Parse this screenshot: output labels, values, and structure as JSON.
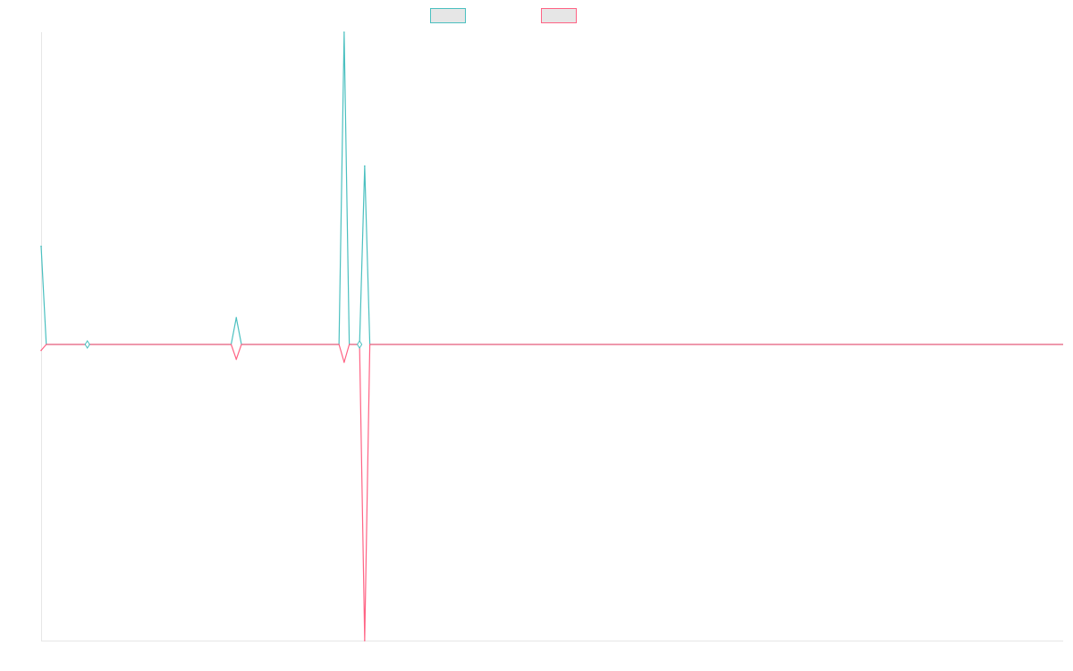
{
  "chart_data": {
    "type": "line",
    "title": "",
    "xlabel": "",
    "ylabel": "",
    "grid": false,
    "legend_placement": "top-center",
    "x_count": 200,
    "ylim": [
      -1,
      1
    ],
    "series": [
      {
        "color": "#4bc0c0",
        "fill": "#e6e6e6",
        "points": [
          {
            "x": 0,
            "y": 0.33
          },
          {
            "x": 1,
            "y": 0
          },
          {
            "x": 9,
            "y": 0
          },
          {
            "x": 10,
            "y": 0
          },
          {
            "x": 12,
            "y": 0
          },
          {
            "x": 13,
            "y": 0
          },
          {
            "x": 14,
            "y": 0
          },
          {
            "x": 37,
            "y": 0
          },
          {
            "x": 38,
            "y": 0.09
          },
          {
            "x": 39,
            "y": 0
          },
          {
            "x": 58,
            "y": 0
          },
          {
            "x": 59,
            "y": 1.05
          },
          {
            "x": 60,
            "y": 0
          },
          {
            "x": 62,
            "y": 0
          },
          {
            "x": 63,
            "y": 0.6
          },
          {
            "x": 64,
            "y": 0
          },
          {
            "x": 199,
            "y": 0
          }
        ]
      },
      {
        "color": "#ff6384",
        "fill": "#e6e6e6",
        "points": [
          {
            "x": 0,
            "y": -0.02
          },
          {
            "x": 1,
            "y": 0
          },
          {
            "x": 9,
            "y": 0
          },
          {
            "x": 10,
            "y": 0
          },
          {
            "x": 12,
            "y": 0
          },
          {
            "x": 37,
            "y": 0
          },
          {
            "x": 38,
            "y": -0.05
          },
          {
            "x": 39,
            "y": 0
          },
          {
            "x": 58,
            "y": 0
          },
          {
            "x": 59,
            "y": -0.06
          },
          {
            "x": 60,
            "y": 0
          },
          {
            "x": 62,
            "y": 0
          },
          {
            "x": 63,
            "y": -1.0
          },
          {
            "x": 64,
            "y": 0
          },
          {
            "x": 199,
            "y": 0
          }
        ]
      }
    ]
  }
}
